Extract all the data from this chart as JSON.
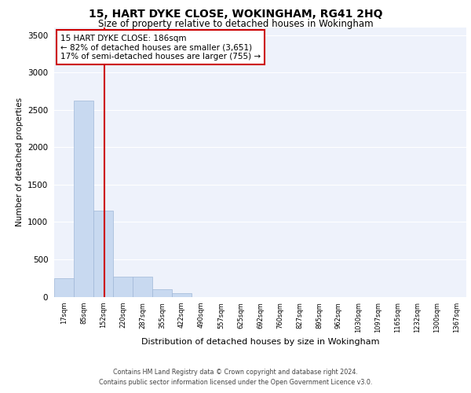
{
  "title": "15, HART DYKE CLOSE, WOKINGHAM, RG41 2HQ",
  "subtitle": "Size of property relative to detached houses in Wokingham",
  "xlabel": "Distribution of detached houses by size in Wokingham",
  "ylabel": "Number of detached properties",
  "bin_labels": [
    "17sqm",
    "85sqm",
    "152sqm",
    "220sqm",
    "287sqm",
    "355sqm",
    "422sqm",
    "490sqm",
    "557sqm",
    "625sqm",
    "692sqm",
    "760sqm",
    "827sqm",
    "895sqm",
    "962sqm",
    "1030sqm",
    "1097sqm",
    "1165sqm",
    "1232sqm",
    "1300sqm",
    "1367sqm"
  ],
  "bar_values": [
    250,
    2620,
    1150,
    265,
    265,
    100,
    45,
    0,
    0,
    0,
    0,
    0,
    0,
    0,
    0,
    0,
    0,
    0,
    0,
    0,
    0
  ],
  "bar_color": "#c8d9f0",
  "bar_edge_color": "#a0b8d8",
  "property_line_x": 2.54,
  "property_line_color": "#cc0000",
  "annotation_text": "15 HART DYKE CLOSE: 186sqm\n← 82% of detached houses are smaller (3,651)\n17% of semi-detached houses are larger (755) →",
  "annotation_box_color": "#ffffff",
  "annotation_box_edge_color": "#cc0000",
  "ylim": [
    0,
    3600
  ],
  "yticks": [
    0,
    500,
    1000,
    1500,
    2000,
    2500,
    3000,
    3500
  ],
  "background_color": "#eef2fb",
  "grid_color": "#ffffff",
  "footer_line1": "Contains HM Land Registry data © Crown copyright and database right 2024.",
  "footer_line2": "Contains public sector information licensed under the Open Government Licence v3.0."
}
